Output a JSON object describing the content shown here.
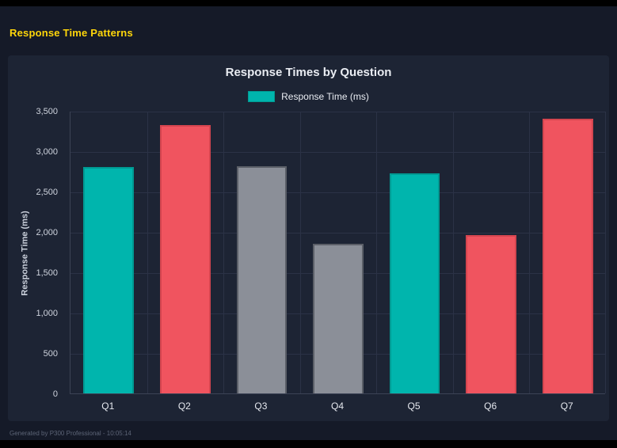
{
  "page": {
    "title": "Response Time Patterns",
    "title_color": "#ffd60a",
    "background_color": "#151a28",
    "panel_color": "#1d2434"
  },
  "footer": {
    "text": "Generated by P300 Professional - 10:05:14"
  },
  "chart_data": {
    "type": "bar",
    "title": "Response Times by Question",
    "legend_label": "Response Time (ms)",
    "legend_position": "top",
    "categories": [
      "Q1",
      "Q2",
      "Q3",
      "Q4",
      "Q5",
      "Q6",
      "Q7"
    ],
    "values": [
      2800,
      3320,
      2810,
      1850,
      2730,
      1960,
      3400
    ],
    "bar_colors": [
      "#00b5ad",
      "#f0545f",
      "#8b8f98",
      "#8b8f98",
      "#00b5ad",
      "#f0545f",
      "#f0545f"
    ],
    "bar_border_colors": [
      "#009a93",
      "#d4454f",
      "#5b5f68",
      "#5b5f68",
      "#009a93",
      "#d4454f",
      "#d4454f"
    ],
    "xlabel": "",
    "ylabel": "Response Time (ms)",
    "ylim": [
      0,
      3500
    ],
    "ytick_step": 500,
    "grid": true
  }
}
